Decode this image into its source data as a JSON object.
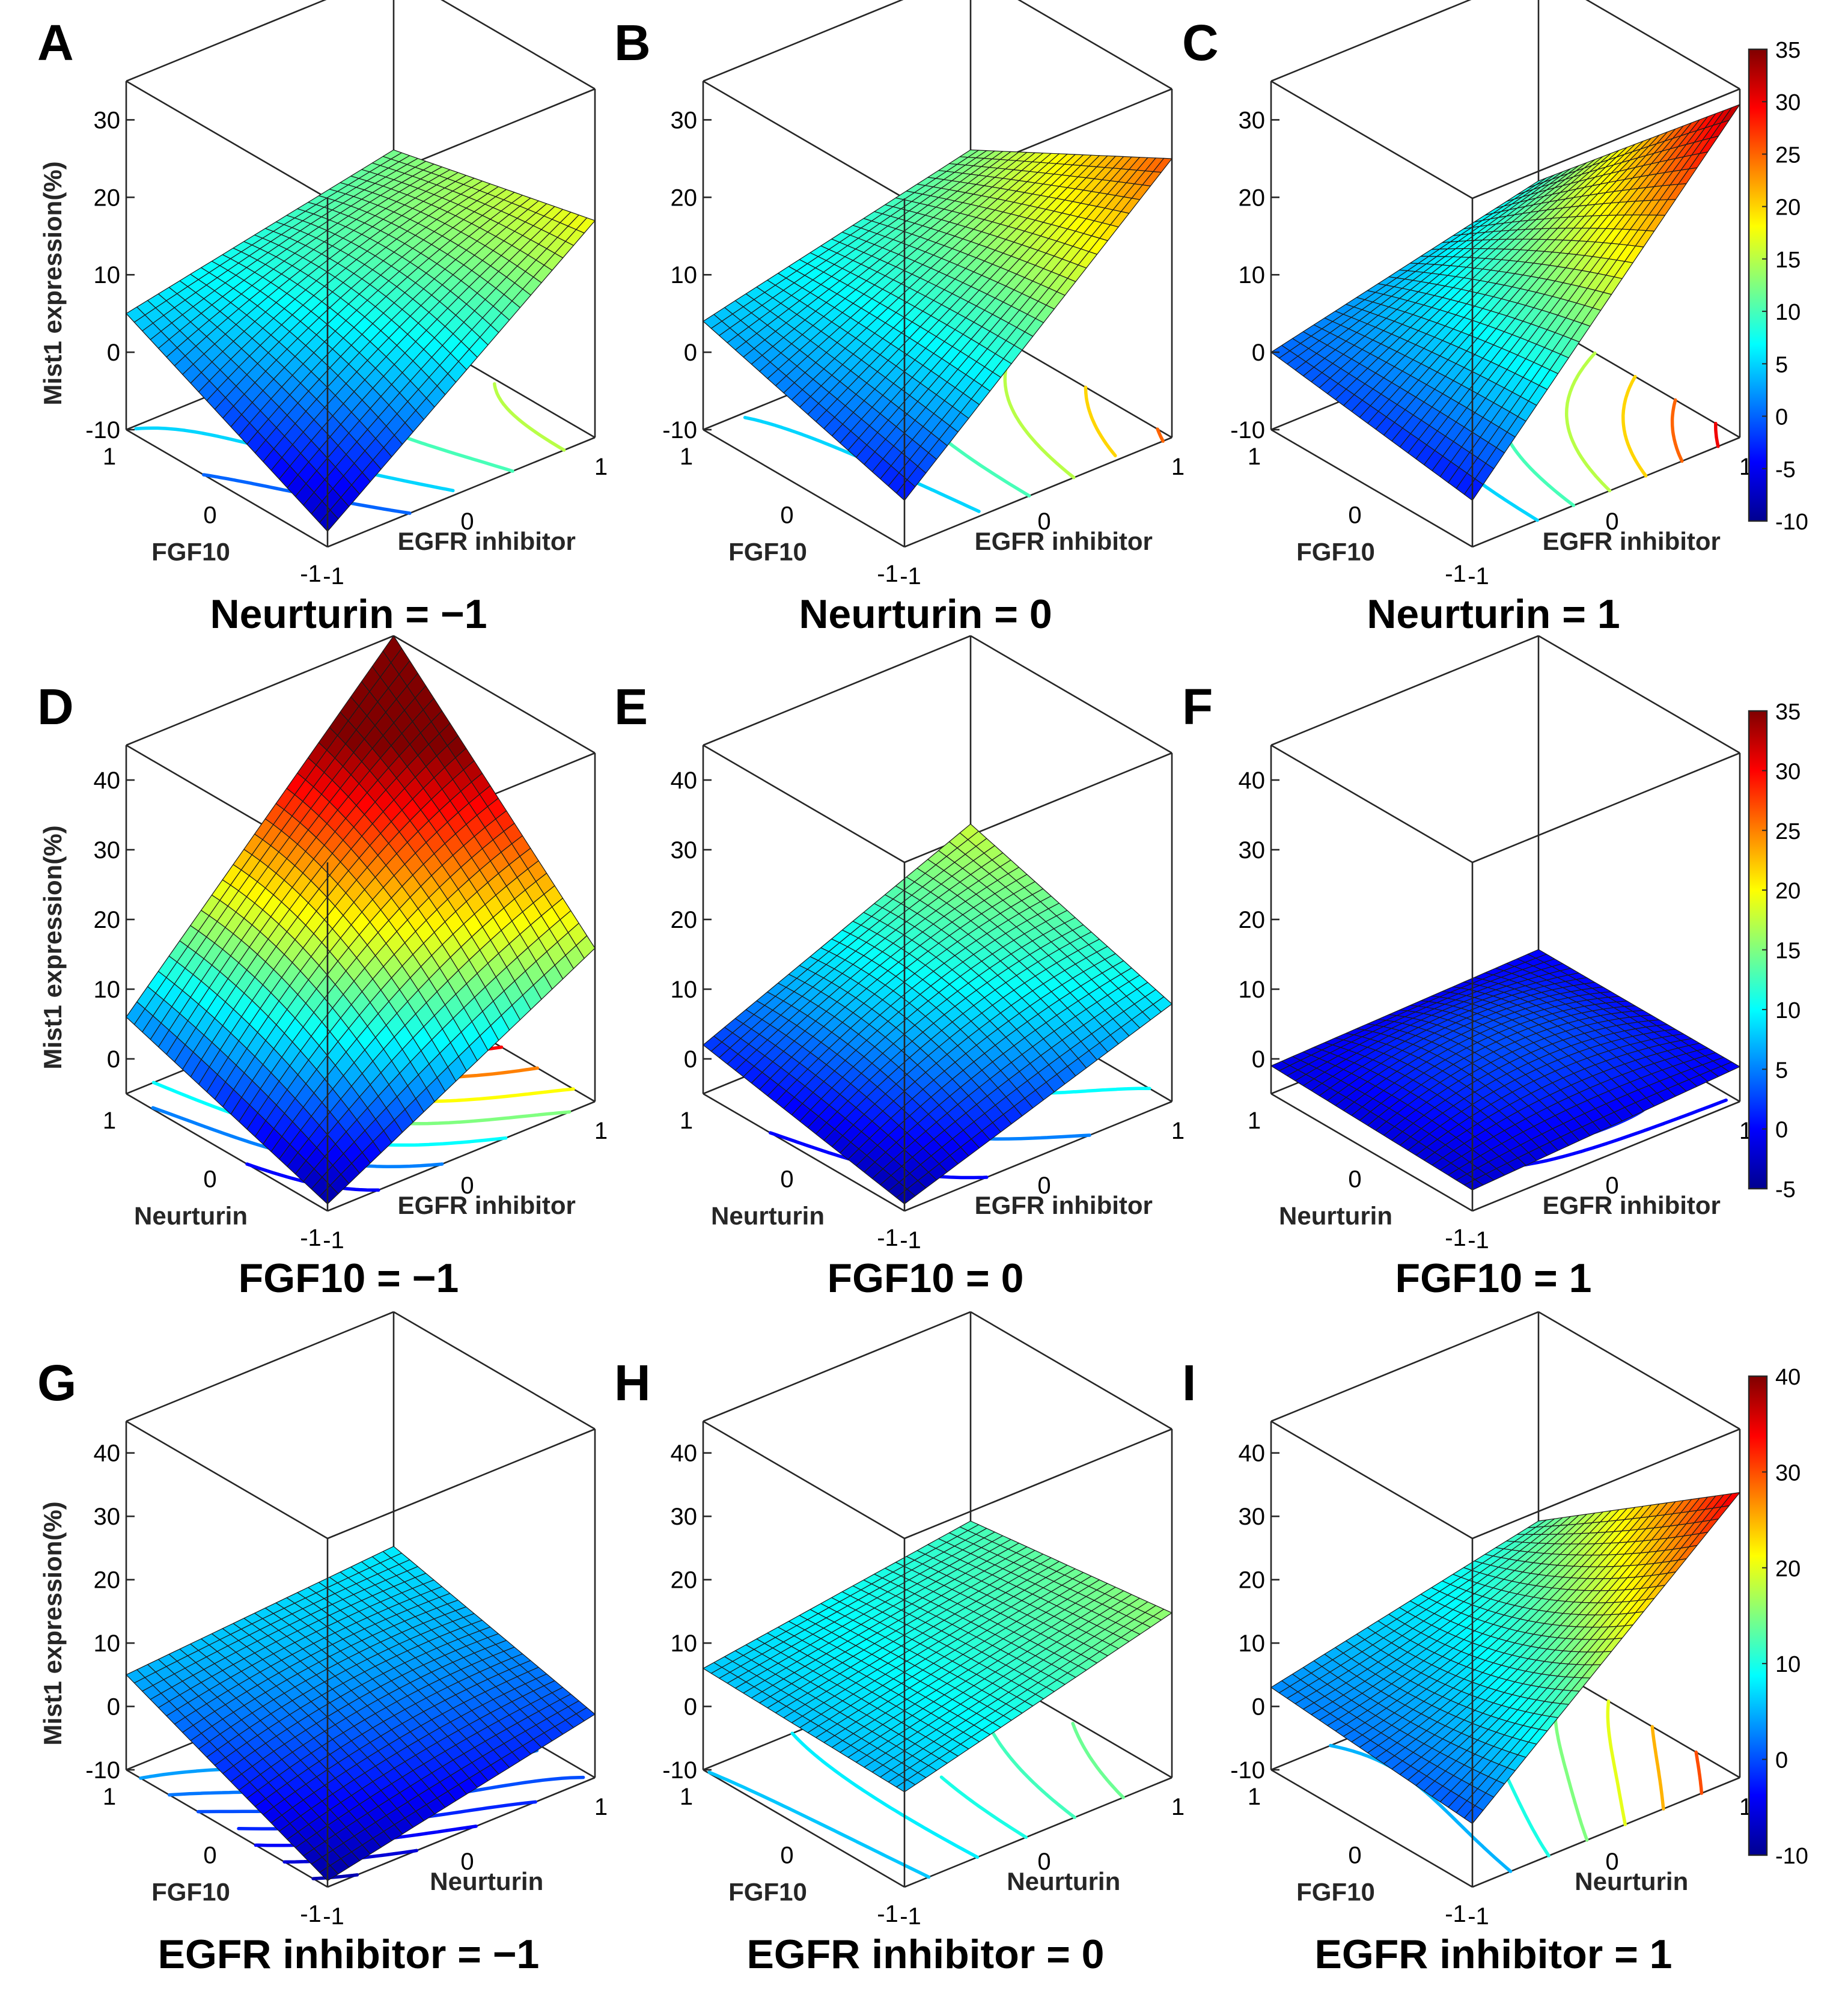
{
  "figure": {
    "z_axis_label": "Mist1 expression(%)",
    "colormap": [
      "#00008f",
      "#0000ff",
      "#0080ff",
      "#00ffff",
      "#80ff80",
      "#ffff00",
      "#ff8000",
      "#ff0000",
      "#800000"
    ]
  },
  "chart_data": [
    {
      "type": "surface",
      "letter": "A",
      "title": "Neurturin = −1",
      "xlabel": "EGFR inhibitor",
      "ylabel": "FGF10",
      "zlabel": "Mist1 expression(%)",
      "zlim": [
        -10,
        35
      ],
      "zticks": [
        -10,
        0,
        10,
        20,
        30
      ],
      "xticks": [
        -1,
        0,
        1
      ],
      "yticks": [
        -1,
        0,
        1
      ],
      "z_at_corners": {
        "x=-1,y=-1": -8,
        "x=1,y=-1": 18,
        "x=-1,y=1": 5,
        "x=1,y=1": 12,
        "center": 9
      },
      "contour_levels": [
        0,
        5,
        10,
        15,
        20
      ]
    },
    {
      "type": "surface",
      "letter": "B",
      "title": "Neurturin = 0",
      "xlabel": "EGFR inhibitor",
      "ylabel": "FGF10",
      "zlabel": "Mist1 expression(%)",
      "zlim": [
        -10,
        35
      ],
      "zticks": [
        -10,
        0,
        10,
        20,
        30
      ],
      "xticks": [
        -1,
        0,
        1
      ],
      "yticks": [
        -1,
        0,
        1
      ],
      "z_at_corners": {
        "x=-1,y=-1": -4,
        "x=1,y=-1": 26,
        "x=-1,y=1": 4,
        "x=1,y=1": 12,
        "center": 10
      },
      "contour_levels": [
        5,
        10,
        15,
        20,
        25,
        30
      ]
    },
    {
      "type": "surface",
      "letter": "C",
      "title": "Neurturin = 1",
      "xlabel": "EGFR inhibitor",
      "ylabel": "FGF10",
      "zlabel": "Mist1 expression(%)",
      "zlim": [
        -10,
        35
      ],
      "zticks": [
        -10,
        0,
        10,
        20,
        30
      ],
      "xticks": [
        -1,
        0,
        1
      ],
      "yticks": [
        -1,
        0,
        1
      ],
      "z_at_corners": {
        "x=-1,y=-1": -4,
        "x=1,y=-1": 33,
        "x=-1,y=1": 0,
        "x=1,y=1": 8,
        "center": 10
      },
      "contour_levels": [
        5,
        10,
        15,
        20,
        25,
        30
      ]
    },
    {
      "type": "surface",
      "letter": "D",
      "title": "FGF10 = −1",
      "xlabel": "EGFR inhibitor",
      "ylabel": "Neurturin",
      "zlabel": "Mist1 expression(%)",
      "zlim": [
        -5,
        45
      ],
      "zticks": [
        0,
        10,
        20,
        30,
        40
      ],
      "xticks": [
        -1,
        0,
        1
      ],
      "yticks": [
        -1,
        0,
        1
      ],
      "z_at_corners": {
        "x=-1,y=-1": -4,
        "x=1,y=-1": 17,
        "x=-1,y=1": 6,
        "x=1,y=1": 45,
        "center": 20
      },
      "contour_levels": [
        0,
        5,
        10,
        15,
        20,
        25,
        30
      ]
    },
    {
      "type": "surface",
      "letter": "E",
      "title": "FGF10 = 0",
      "xlabel": "EGFR inhibitor",
      "ylabel": "Neurturin",
      "zlabel": "Mist1 expression(%)",
      "zlim": [
        -5,
        45
      ],
      "zticks": [
        0,
        10,
        20,
        30,
        40
      ],
      "xticks": [
        -1,
        0,
        1
      ],
      "yticks": [
        -1,
        0,
        1
      ],
      "z_at_corners": {
        "x=-1,y=-1": -4,
        "x=1,y=-1": 9,
        "x=-1,y=1": 2,
        "x=1,y=1": 18,
        "center": 9
      },
      "contour_levels": [
        0,
        5,
        10,
        15
      ]
    },
    {
      "type": "surface",
      "letter": "F",
      "title": "FGF10 = 1",
      "xlabel": "EGFR inhibitor",
      "ylabel": "Neurturin",
      "zlabel": "Mist1 expression(%)",
      "zlim": [
        -5,
        45
      ],
      "zticks": [
        0,
        10,
        20,
        30,
        40
      ],
      "xticks": [
        -1,
        0,
        1
      ],
      "yticks": [
        -1,
        0,
        1
      ],
      "z_at_corners": {
        "x=-1,y=-1": -2,
        "x=1,y=-1": 0,
        "x=-1,y=1": -1,
        "x=1,y=1": 0,
        "center": 3
      },
      "contour_levels": [
        -2,
        0,
        1,
        2,
        3
      ]
    },
    {
      "type": "surface",
      "letter": "G",
      "title": "EGFR inhibitor = −1",
      "xlabel": "Neurturin",
      "ylabel": "FGF10",
      "zlabel": "Mist1 expression(%)",
      "zlim": [
        -10,
        45
      ],
      "zticks": [
        -10,
        0,
        10,
        20,
        30,
        40
      ],
      "xticks": [
        -1,
        0,
        1
      ],
      "yticks": [
        -1,
        0,
        1
      ],
      "z_at_corners": {
        "x=-1,y=-1": -9,
        "x=1,y=-1": 0,
        "x=-1,y=1": 5,
        "x=1,y=1": 8,
        "center": 3
      },
      "contour_levels": [
        -8,
        -6,
        -4,
        -2,
        0,
        2,
        4
      ]
    },
    {
      "type": "surface",
      "letter": "H",
      "title": "EGFR inhibitor = 0",
      "xlabel": "Neurturin",
      "ylabel": "FGF10",
      "zlabel": "Mist1 expression(%)",
      "zlim": [
        -10,
        45
      ],
      "zticks": [
        -10,
        0,
        10,
        20,
        30,
        40
      ],
      "xticks": [
        -1,
        0,
        1
      ],
      "yticks": [
        -1,
        0,
        1
      ],
      "z_at_corners": {
        "x=-1,y=-1": 5,
        "x=1,y=-1": 16,
        "x=-1,y=1": 6,
        "x=1,y=1": 12,
        "center": 10
      },
      "contour_levels": [
        6,
        8,
        10,
        12,
        14,
        16
      ]
    },
    {
      "type": "surface",
      "letter": "I",
      "title": "EGFR inhibitor = 1",
      "xlabel": "Neurturin",
      "ylabel": "FGF10",
      "zlabel": "Mist1 expression(%)",
      "zlim": [
        -10,
        45
      ],
      "zticks": [
        -10,
        0,
        10,
        20,
        30,
        40
      ],
      "xticks": [
        -1,
        0,
        1
      ],
      "yticks": [
        -1,
        0,
        1
      ],
      "z_at_corners": {
        "x=-1,y=-1": 0,
        "x=1,y=-1": 35,
        "x=-1,y=1": 3,
        "x=1,y=1": 12,
        "center": 10
      },
      "contour_levels": [
        5,
        10,
        15,
        20,
        25,
        30
      ]
    }
  ],
  "colorbars": [
    {
      "row": 1,
      "min": -10,
      "max": 35,
      "ticks": [
        -10,
        -5,
        0,
        5,
        10,
        15,
        20,
        25,
        30,
        35
      ]
    },
    {
      "row": 2,
      "min": -5,
      "max": 35,
      "ticks": [
        -5,
        0,
        5,
        10,
        15,
        20,
        25,
        30,
        35
      ]
    },
    {
      "row": 3,
      "min": -10,
      "max": 40,
      "ticks": [
        -10,
        0,
        10,
        20,
        30,
        40
      ]
    }
  ]
}
